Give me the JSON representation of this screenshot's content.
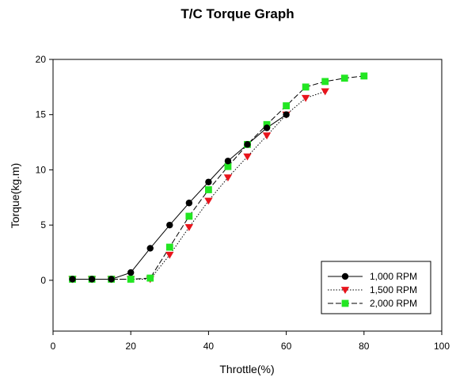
{
  "chart_data": {
    "type": "line",
    "title": "T/C Torque Graph",
    "xlabel": "Throttle(%)",
    "ylabel": "Torque(kg.m)",
    "xlim": [
      0,
      100
    ],
    "ylim": [
      -4.6,
      20
    ],
    "xticks": [
      0,
      20,
      40,
      60,
      80,
      100
    ],
    "yticks": [
      0,
      5,
      10,
      15,
      20
    ],
    "grid": false,
    "legend_position": "bottom-right",
    "series": [
      {
        "name": "1,000 RPM",
        "marker": "circle",
        "color": "#000000",
        "line_style": "solid",
        "x": [
          5,
          10,
          15,
          20,
          25,
          30,
          35,
          40,
          45,
          50,
          55,
          60
        ],
        "y": [
          0.1,
          0.1,
          0.1,
          0.7,
          2.9,
          5.0,
          7.0,
          8.9,
          10.8,
          12.3,
          13.8,
          15.0
        ]
      },
      {
        "name": "1,500 RPM",
        "marker": "triangle-down",
        "color": "#e8141c",
        "line_style": "dotted",
        "x": [
          5,
          10,
          15,
          20,
          25,
          30,
          35,
          40,
          45,
          50,
          55,
          60,
          65,
          70
        ],
        "y": [
          0.1,
          0.1,
          0.1,
          0.1,
          0.1,
          2.3,
          4.8,
          7.2,
          9.3,
          11.2,
          13.1,
          15.0,
          16.5,
          17.1
        ]
      },
      {
        "name": "2,000 RPM",
        "marker": "square",
        "color": "#22e622",
        "line_style": "dashed",
        "x": [
          5,
          10,
          15,
          20,
          25,
          30,
          35,
          40,
          45,
          50,
          55,
          60,
          65,
          70,
          75,
          80
        ],
        "y": [
          0.1,
          0.1,
          0.1,
          0.1,
          0.2,
          3.0,
          5.8,
          8.2,
          10.3,
          12.3,
          14.1,
          15.8,
          17.5,
          18.0,
          18.3,
          18.5
        ]
      }
    ]
  }
}
